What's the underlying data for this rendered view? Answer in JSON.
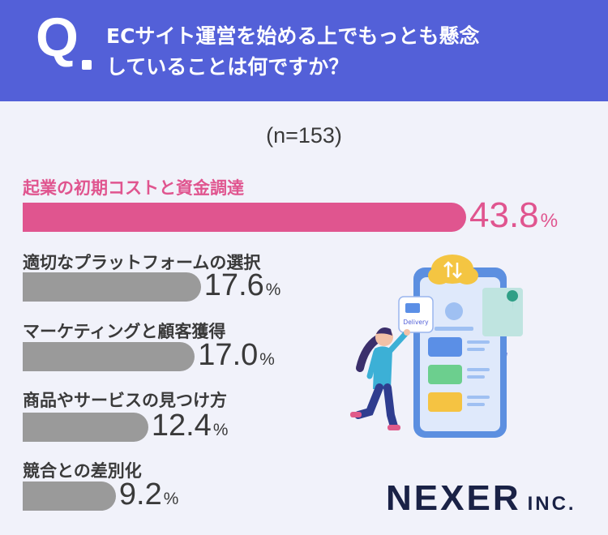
{
  "question": {
    "mark": "Q",
    "line1": "ECサイト運営を始める上でもっとも懸念",
    "line2": "していることは何ですか？"
  },
  "sample_label": "(n=153)",
  "colors": {
    "header": "#5360d8",
    "highlight": "#e0558f",
    "bar": "#9a9a9a",
    "text": "#3a3a3a"
  },
  "chart_data": {
    "type": "bar",
    "orientation": "horizontal",
    "categories": [
      "起業の初期コストと資金調達",
      "適切なプラットフォームの選択",
      "マーケティングと顧客獲得",
      "商品やサービスの見つけ方",
      "競合との差別化"
    ],
    "values": [
      43.8,
      17.6,
      17.0,
      12.4,
      9.2
    ],
    "value_labels": [
      "43.8",
      "17.6",
      "17.0",
      "12.4",
      "9.2"
    ],
    "unit": "%",
    "n": 153
  },
  "illustration": {
    "badge_text": "Delivery"
  },
  "logo": {
    "main": "NEXER",
    "sub": "INC."
  }
}
